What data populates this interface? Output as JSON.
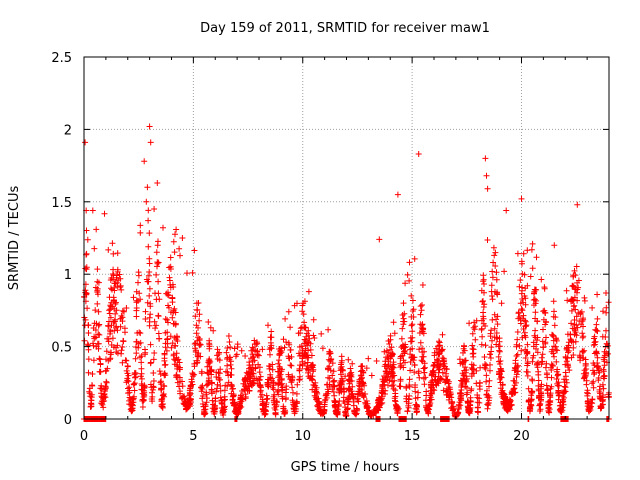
{
  "chart_data": {
    "type": "scatter",
    "title": "Day 159 of 2011, SRMTID for receiver maw1",
    "xlabel": "GPS time / hours",
    "ylabel": "SRMTID / TECUs",
    "xlim": [
      0,
      24
    ],
    "ylim": [
      0,
      2.5
    ],
    "x_ticks": [
      0,
      5,
      10,
      15,
      20
    ],
    "x_tick_labels": [
      "0",
      "5",
      "10",
      "15",
      "20"
    ],
    "y_ticks": [
      0,
      0.5,
      1,
      1.5,
      2,
      2.5
    ],
    "y_tick_labels": [
      "0",
      "0.5",
      "1",
      "1.5",
      "2",
      "2.5"
    ],
    "grid": true,
    "marker": "+",
    "color": "#ff0000",
    "profile": [
      [
        0.0,
        0.75
      ],
      [
        0.5,
        0.55
      ],
      [
        1.0,
        0.75
      ],
      [
        1.5,
        0.55
      ],
      [
        2.0,
        0.45
      ],
      [
        2.5,
        0.55
      ],
      [
        3.0,
        0.85
      ],
      [
        3.5,
        0.7
      ],
      [
        4.0,
        0.6
      ],
      [
        4.5,
        0.65
      ],
      [
        5.0,
        0.55
      ],
      [
        5.5,
        0.3
      ],
      [
        6.0,
        0.3
      ],
      [
        6.5,
        0.3
      ],
      [
        7.0,
        0.3
      ],
      [
        7.5,
        0.25
      ],
      [
        8.0,
        0.3
      ],
      [
        8.5,
        0.3
      ],
      [
        9.0,
        0.3
      ],
      [
        9.5,
        0.35
      ],
      [
        10.0,
        0.45
      ],
      [
        10.5,
        0.35
      ],
      [
        11.0,
        0.3
      ],
      [
        11.5,
        0.25
      ],
      [
        12.0,
        0.2
      ],
      [
        12.5,
        0.2
      ],
      [
        13.0,
        0.2
      ],
      [
        13.5,
        0.2
      ],
      [
        14.0,
        0.3
      ],
      [
        14.5,
        0.4
      ],
      [
        15.0,
        0.5
      ],
      [
        15.5,
        0.45
      ],
      [
        16.0,
        0.3
      ],
      [
        16.5,
        0.25
      ],
      [
        17.0,
        0.15
      ],
      [
        17.5,
        0.3
      ],
      [
        18.0,
        0.4
      ],
      [
        18.5,
        0.7
      ],
      [
        19.0,
        0.55
      ],
      [
        19.5,
        0.6
      ],
      [
        20.0,
        0.6
      ],
      [
        20.5,
        0.55
      ],
      [
        21.0,
        0.5
      ],
      [
        21.5,
        0.45
      ],
      [
        22.0,
        0.5
      ],
      [
        22.5,
        0.55
      ],
      [
        23.0,
        0.45
      ],
      [
        23.5,
        0.4
      ],
      [
        24.0,
        0.4
      ]
    ],
    "outliers": [
      [
        0.05,
        1.91
      ],
      [
        0.1,
        1.44
      ],
      [
        0.4,
        1.44
      ],
      [
        2.75,
        1.78
      ],
      [
        3.0,
        2.02
      ],
      [
        3.05,
        1.91
      ],
      [
        3.35,
        1.63
      ],
      [
        2.9,
        1.6
      ],
      [
        2.85,
        1.5
      ],
      [
        14.35,
        1.55
      ],
      [
        15.3,
        1.83
      ],
      [
        18.35,
        1.8
      ],
      [
        18.4,
        1.68
      ],
      [
        18.45,
        1.59
      ],
      [
        19.3,
        1.44
      ],
      [
        20.0,
        1.52
      ],
      [
        22.55,
        1.48
      ],
      [
        13.5,
        1.24
      ],
      [
        4.5,
        1.25
      ],
      [
        21.5,
        1.2
      ]
    ],
    "zero_segments": [
      [
        0.0,
        1.0
      ],
      [
        6.9,
        7.0
      ],
      [
        13.35,
        13.55
      ],
      [
        14.4,
        14.75
      ],
      [
        16.3,
        16.7
      ],
      [
        20.3,
        20.35
      ],
      [
        21.8,
        22.15
      ],
      [
        23.9,
        24.0
      ]
    ],
    "num_points": 2800,
    "seed": 159
  }
}
